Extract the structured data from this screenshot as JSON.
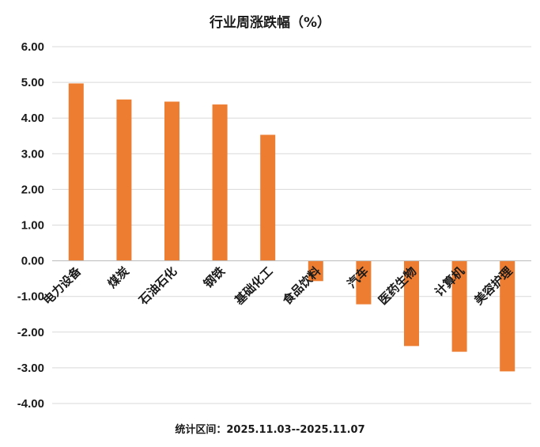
{
  "chart_data": {
    "type": "bar",
    "title": "行业周涨跌幅（%）",
    "categories": [
      "电力设备",
      "煤炭",
      "石油石化",
      "钢铁",
      "基础化工",
      "食品饮料",
      "汽车",
      "医药生物",
      "计算机",
      "美容护理"
    ],
    "values": [
      4.97,
      4.52,
      4.46,
      4.38,
      3.53,
      -0.57,
      -1.22,
      -2.39,
      -2.55,
      -3.1
    ],
    "ylim": [
      -4.0,
      6.0
    ],
    "yticks": [
      "6.00",
      "5.00",
      "4.00",
      "3.00",
      "2.00",
      "1.00",
      "0.00",
      "-1.00",
      "-2.00",
      "-3.00",
      "-4.00"
    ],
    "grid": true,
    "bar_color": "#ED7D31",
    "xlabel": "",
    "ylabel": ""
  },
  "footer": "统计区间：2025.11.03--2025.11.07"
}
